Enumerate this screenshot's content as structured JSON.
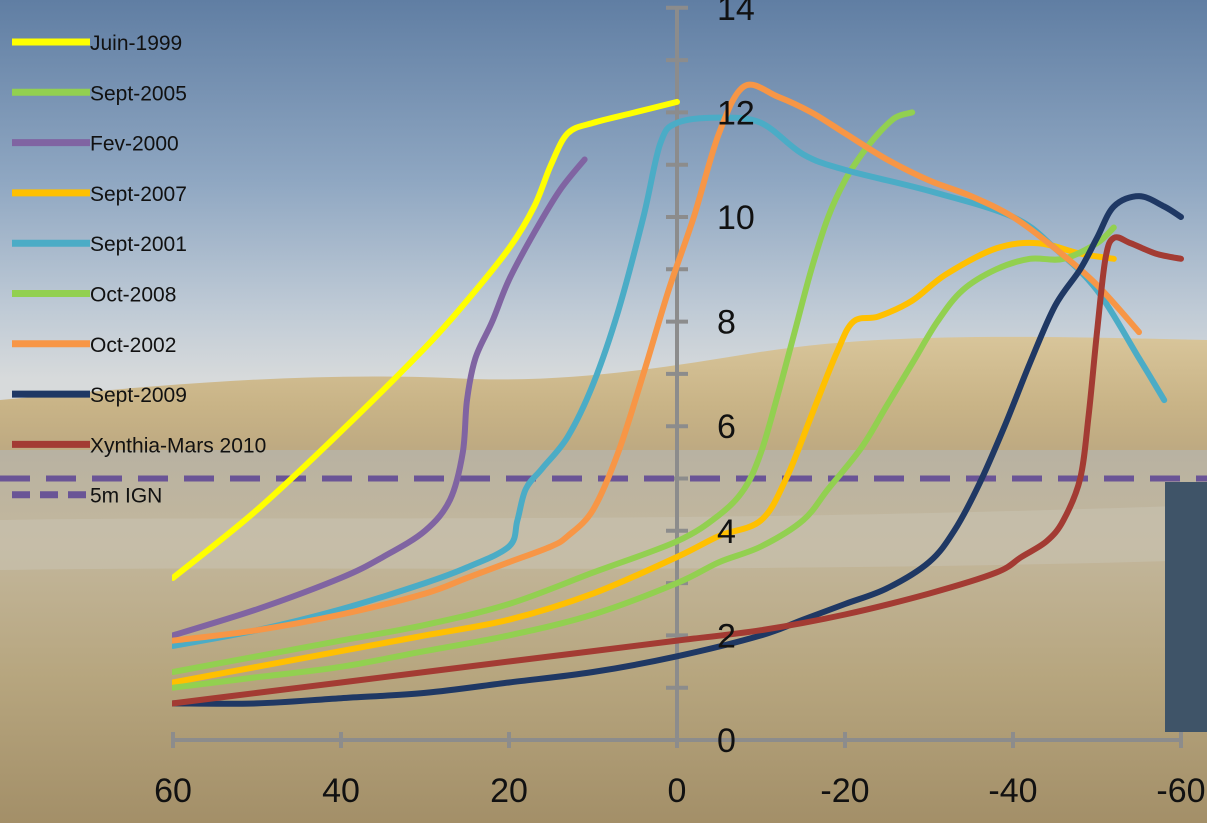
{
  "chart_data": {
    "type": "line",
    "title": "",
    "xlabel": "",
    "ylabel": "",
    "xlim": [
      60,
      -60
    ],
    "ylim": [
      0,
      14
    ],
    "x_ticks": [
      "60",
      "40",
      "20",
      "0",
      "-20",
      "-40",
      "-60"
    ],
    "y_ticks": [
      "0",
      "2",
      "4",
      "6",
      "8",
      "10",
      "12",
      "14"
    ],
    "legend_position": "top-left",
    "reference_line": {
      "name": "5m IGN",
      "y": 5,
      "color": "#6a5496",
      "style": "dashed"
    },
    "series": [
      {
        "name": "Juin-1999",
        "color": "#ffff00",
        "points": [
          [
            60,
            3.1
          ],
          [
            50,
            4.4
          ],
          [
            40,
            5.9
          ],
          [
            30,
            7.5
          ],
          [
            25,
            8.4
          ],
          [
            20,
            9.4
          ],
          [
            17,
            10.2
          ],
          [
            15,
            11.0
          ],
          [
            13,
            11.6
          ],
          [
            10,
            11.8
          ],
          [
            5,
            12.0
          ],
          [
            0,
            12.2
          ]
        ]
      },
      {
        "name": "Sept-2005",
        "color": "#92d050",
        "points": [
          [
            60,
            1.3
          ],
          [
            50,
            1.6
          ],
          [
            40,
            1.9
          ],
          [
            30,
            2.2
          ],
          [
            20,
            2.6
          ],
          [
            10,
            3.2
          ],
          [
            0,
            3.8
          ],
          [
            -5,
            4.3
          ],
          [
            -8,
            4.8
          ],
          [
            -10,
            5.5
          ],
          [
            -12,
            6.6
          ],
          [
            -14,
            7.8
          ],
          [
            -16,
            9.0
          ],
          [
            -18,
            10.0
          ],
          [
            -20,
            10.7
          ],
          [
            -22,
            11.2
          ],
          [
            -24,
            11.6
          ],
          [
            -26,
            11.9
          ],
          [
            -28,
            12.0
          ]
        ]
      },
      {
        "name": "Fev-2000",
        "color": "#8064a2",
        "points": [
          [
            60,
            2.0
          ],
          [
            50,
            2.5
          ],
          [
            40,
            3.1
          ],
          [
            35,
            3.5
          ],
          [
            30,
            4.0
          ],
          [
            27,
            4.6
          ],
          [
            25.5,
            5.5
          ],
          [
            25,
            6.5
          ],
          [
            24,
            7.3
          ],
          [
            22,
            8.0
          ],
          [
            20,
            8.8
          ],
          [
            17,
            9.7
          ],
          [
            14,
            10.5
          ],
          [
            11,
            11.1
          ]
        ]
      },
      {
        "name": "Sept-2007",
        "color": "#ffc000",
        "points": [
          [
            60,
            1.1
          ],
          [
            50,
            1.4
          ],
          [
            40,
            1.7
          ],
          [
            30,
            2.0
          ],
          [
            20,
            2.3
          ],
          [
            10,
            2.8
          ],
          [
            0,
            3.5
          ],
          [
            -5,
            3.9
          ],
          [
            -10,
            4.2
          ],
          [
            -13,
            5.0
          ],
          [
            -16,
            6.2
          ],
          [
            -19,
            7.4
          ],
          [
            -21,
            8.0
          ],
          [
            -24,
            8.1
          ],
          [
            -28,
            8.4
          ],
          [
            -32,
            8.9
          ],
          [
            -38,
            9.4
          ],
          [
            -43,
            9.5
          ],
          [
            -48,
            9.3
          ],
          [
            -52,
            9.2
          ]
        ]
      },
      {
        "name": "Sept-2001",
        "color": "#4bacc6",
        "points": [
          [
            60,
            1.8
          ],
          [
            50,
            2.1
          ],
          [
            40,
            2.5
          ],
          [
            30,
            3.0
          ],
          [
            25,
            3.3
          ],
          [
            20,
            3.7
          ],
          [
            19,
            4.2
          ],
          [
            18,
            4.8
          ],
          [
            16,
            5.2
          ],
          [
            13,
            5.8
          ],
          [
            10,
            6.8
          ],
          [
            7,
            8.2
          ],
          [
            4,
            10.0
          ],
          [
            2,
            11.4
          ],
          [
            0,
            11.8
          ],
          [
            -5,
            11.9
          ],
          [
            -10,
            11.8
          ],
          [
            -15,
            11.2
          ],
          [
            -20,
            10.9
          ],
          [
            -30,
            10.5
          ],
          [
            -40,
            10.0
          ],
          [
            -45,
            9.4
          ],
          [
            -50,
            8.6
          ],
          [
            -55,
            7.3
          ],
          [
            -58,
            6.5
          ]
        ]
      },
      {
        "name": "Oct-2008",
        "color": "#92d050",
        "points": [
          [
            60,
            1.0
          ],
          [
            50,
            1.2
          ],
          [
            40,
            1.4
          ],
          [
            30,
            1.7
          ],
          [
            20,
            2.0
          ],
          [
            10,
            2.4
          ],
          [
            0,
            3.0
          ],
          [
            -5,
            3.4
          ],
          [
            -10,
            3.7
          ],
          [
            -15,
            4.2
          ],
          [
            -18,
            4.8
          ],
          [
            -22,
            5.6
          ],
          [
            -25,
            6.4
          ],
          [
            -28,
            7.2
          ],
          [
            -31,
            8.0
          ],
          [
            -34,
            8.6
          ],
          [
            -38,
            9.0
          ],
          [
            -42,
            9.2
          ],
          [
            -46,
            9.2
          ],
          [
            -50,
            9.5
          ],
          [
            -52,
            9.8
          ]
        ]
      },
      {
        "name": "Oct-2002",
        "color": "#f79646",
        "points": [
          [
            60,
            1.9
          ],
          [
            50,
            2.1
          ],
          [
            40,
            2.4
          ],
          [
            30,
            2.8
          ],
          [
            25,
            3.1
          ],
          [
            20,
            3.4
          ],
          [
            15,
            3.7
          ],
          [
            13,
            3.9
          ],
          [
            10,
            4.4
          ],
          [
            7,
            5.5
          ],
          [
            4,
            7.0
          ],
          [
            1,
            8.6
          ],
          [
            -2,
            10.0
          ],
          [
            -5,
            11.6
          ],
          [
            -8,
            12.5
          ],
          [
            -12,
            12.3
          ],
          [
            -16,
            12.0
          ],
          [
            -20,
            11.6
          ],
          [
            -25,
            11.1
          ],
          [
            -30,
            10.7
          ],
          [
            -35,
            10.4
          ],
          [
            -40,
            10.0
          ],
          [
            -45,
            9.4
          ],
          [
            -50,
            8.7
          ],
          [
            -55,
            7.8
          ]
        ]
      },
      {
        "name": "Sept-2009",
        "color": "#1f3864",
        "points": [
          [
            60,
            0.7
          ],
          [
            50,
            0.7
          ],
          [
            40,
            0.8
          ],
          [
            30,
            0.9
          ],
          [
            20,
            1.1
          ],
          [
            10,
            1.3
          ],
          [
            0,
            1.6
          ],
          [
            -10,
            2.0
          ],
          [
            -15,
            2.3
          ],
          [
            -20,
            2.6
          ],
          [
            -25,
            2.9
          ],
          [
            -30,
            3.4
          ],
          [
            -33,
            4.0
          ],
          [
            -36,
            4.9
          ],
          [
            -39,
            6.0
          ],
          [
            -42,
            7.2
          ],
          [
            -45,
            8.3
          ],
          [
            -48,
            9.0
          ],
          [
            -50,
            9.6
          ],
          [
            -52,
            10.2
          ],
          [
            -55,
            10.4
          ],
          [
            -58,
            10.2
          ],
          [
            -60,
            10.0
          ]
        ]
      },
      {
        "name": "Xynthia-Mars 2010",
        "color": "#a33b33",
        "points": [
          [
            60,
            0.7
          ],
          [
            50,
            0.9
          ],
          [
            40,
            1.1
          ],
          [
            30,
            1.3
          ],
          [
            20,
            1.5
          ],
          [
            10,
            1.7
          ],
          [
            0,
            1.9
          ],
          [
            -10,
            2.1
          ],
          [
            -20,
            2.4
          ],
          [
            -30,
            2.8
          ],
          [
            -38,
            3.2
          ],
          [
            -41,
            3.5
          ],
          [
            -44,
            3.8
          ],
          [
            -46,
            4.2
          ],
          [
            -48,
            5.0
          ],
          [
            -49,
            6.2
          ],
          [
            -50,
            7.8
          ],
          [
            -51,
            9.2
          ],
          [
            -52,
            9.6
          ],
          [
            -54,
            9.5
          ],
          [
            -57,
            9.3
          ],
          [
            -60,
            9.2
          ]
        ]
      }
    ]
  }
}
